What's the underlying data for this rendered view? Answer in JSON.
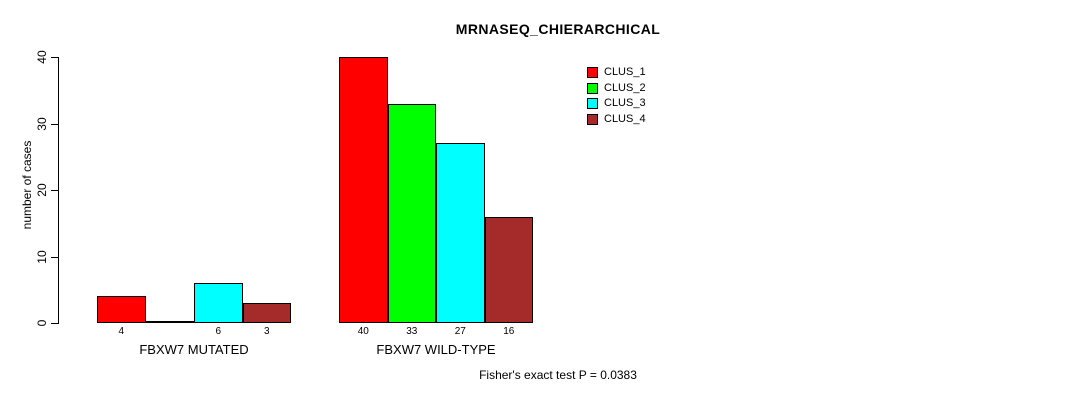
{
  "chart_data": {
    "type": "bar",
    "title": "MRNASEQ_CHIERARCHICAL",
    "ylabel": "number of cases",
    "xlabel": "",
    "ylim": [
      0,
      40
    ],
    "yticks": [
      0,
      10,
      20,
      30,
      40
    ],
    "grid": false,
    "legend_position": "top-right",
    "categories": [
      "FBXW7 MUTATED",
      "FBXW7 WILD-TYPE"
    ],
    "series": [
      {
        "name": "CLUS_1",
        "color": "#FF0000",
        "values": [
          4,
          40
        ]
      },
      {
        "name": "CLUS_2",
        "color": "#00FF00",
        "values": [
          0,
          33
        ]
      },
      {
        "name": "CLUS_3",
        "color": "#00FFFF",
        "values": [
          6,
          27
        ]
      },
      {
        "name": "CLUS_4",
        "color": "#A52A2A",
        "values": [
          3,
          16
        ]
      }
    ],
    "bar_value_labels": [
      [
        "4",
        "",
        "6",
        "3"
      ],
      [
        "40",
        "33",
        "27",
        "16"
      ]
    ],
    "footnote": "Fisher's exact test P = 0.0383",
    "colors": {
      "axis": "#000000",
      "text": "#000000",
      "background": "#FFFFFF"
    }
  }
}
